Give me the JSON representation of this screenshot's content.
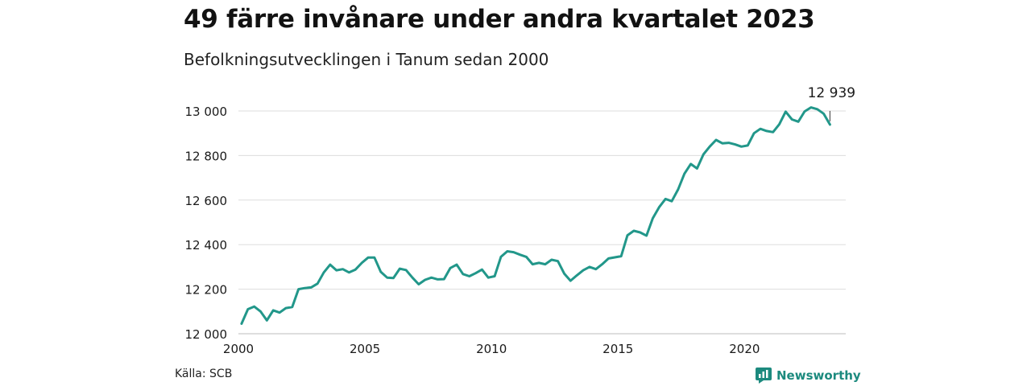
{
  "header": {
    "title": "49 färre invånare under andra kvartalet 2023",
    "subtitle": "Befolkningsutvecklingen i Tanum sedan 2000"
  },
  "footer": {
    "source": "Källa: SCB",
    "brand": "Newsworthy",
    "brand_icon": "newsworthy-logo-icon"
  },
  "colors": {
    "line": "#22978a",
    "grid": "#dddddd",
    "brand": "#1c8a7e"
  },
  "chart_data": {
    "type": "line",
    "title": "49 färre invånare under andra kvartalet 2023",
    "subtitle": "Befolkningsutvecklingen i Tanum sedan 2000",
    "xlabel": "",
    "ylabel": "",
    "xlim": [
      2000,
      2024
    ],
    "ylim": [
      12000,
      13050
    ],
    "grid": true,
    "x_ticks": [
      2000,
      2005,
      2010,
      2015,
      2020
    ],
    "x_tick_labels": [
      "2000",
      "2005",
      "2010",
      "2015",
      "2020"
    ],
    "y_ticks": [
      12000,
      12200,
      12400,
      12600,
      12800,
      13000
    ],
    "y_tick_labels": [
      "12 000",
      "12 200",
      "12 400",
      "12 600",
      "12 800",
      "13 000"
    ],
    "annotation": {
      "x": 2023.375,
      "y": 12939,
      "text": "12 939"
    },
    "series": [
      {
        "x": [
          2000.125,
          2000.375,
          2000.625,
          2000.875,
          2001.125,
          2001.375,
          2001.625,
          2001.875,
          2002.125,
          2002.375,
          2002.625,
          2002.875,
          2003.125,
          2003.375,
          2003.625,
          2003.875,
          2004.125,
          2004.375,
          2004.625,
          2004.875,
          2005.125,
          2005.375,
          2005.625,
          2005.875,
          2006.125,
          2006.375,
          2006.625,
          2006.875,
          2007.125,
          2007.375,
          2007.625,
          2007.875,
          2008.125,
          2008.375,
          2008.625,
          2008.875,
          2009.125,
          2009.375,
          2009.625,
          2009.875,
          2010.125,
          2010.375,
          2010.625,
          2010.875,
          2011.125,
          2011.375,
          2011.625,
          2011.875,
          2012.125,
          2012.375,
          2012.625,
          2012.875,
          2013.125,
          2013.375,
          2013.625,
          2013.875,
          2014.125,
          2014.375,
          2014.625,
          2014.875,
          2015.125,
          2015.375,
          2015.625,
          2015.875,
          2016.125,
          2016.375,
          2016.625,
          2016.875,
          2017.125,
          2017.375,
          2017.625,
          2017.875,
          2018.125,
          2018.375,
          2018.625,
          2018.875,
          2019.125,
          2019.375,
          2019.625,
          2019.875,
          2020.125,
          2020.375,
          2020.625,
          2020.875,
          2021.125,
          2021.375,
          2021.625,
          2021.875,
          2022.125,
          2022.375,
          2022.625,
          2022.875,
          2023.125,
          2023.375
        ],
        "values": [
          12045,
          12110,
          12122,
          12100,
          12060,
          12105,
          12095,
          12115,
          12120,
          12200,
          12205,
          12208,
          12225,
          12275,
          12310,
          12285,
          12290,
          12275,
          12288,
          12318,
          12342,
          12342,
          12278,
          12252,
          12250,
          12292,
          12286,
          12252,
          12222,
          12242,
          12252,
          12244,
          12245,
          12295,
          12310,
          12268,
          12258,
          12272,
          12288,
          12252,
          12258,
          12345,
          12370,
          12366,
          12355,
          12345,
          12312,
          12318,
          12312,
          12332,
          12326,
          12270,
          12238,
          12262,
          12285,
          12300,
          12290,
          12312,
          12338,
          12343,
          12348,
          12442,
          12462,
          12455,
          12440,
          12518,
          12568,
          12605,
          12595,
          12648,
          12718,
          12762,
          12742,
          12805,
          12840,
          12870,
          12855,
          12857,
          12850,
          12840,
          12845,
          12900,
          12920,
          12910,
          12905,
          12940,
          12997,
          12962,
          12952,
          12998,
          13016,
          13008,
          12988,
          12939
        ]
      }
    ]
  }
}
